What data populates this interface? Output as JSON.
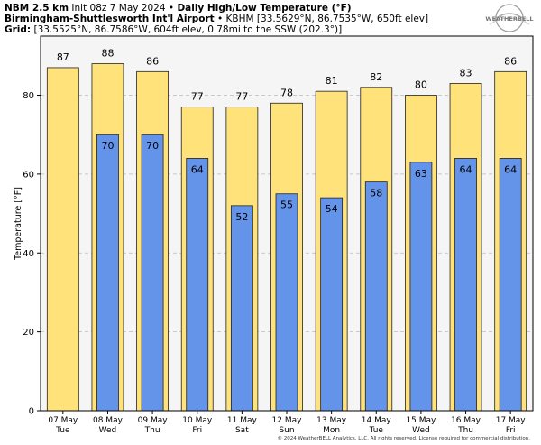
{
  "header": {
    "model": "NBM 2.5 km",
    "init": "Init 08z 7 May 2024",
    "bullet": "•",
    "title": "Daily High/Low Temperature (°F)",
    "station": "Birmingham-Shuttlesworth Int'l Airport",
    "station_info": "KBHM [33.5629°N, 86.7535°W, 650ft elev]",
    "grid_label": "Grid",
    "grid_info": "[33.5525°N, 86.7586°W, 604ft elev, 0.78mi to the SSW (202.3°)]"
  },
  "logo": {
    "text": "WEATHERBELL"
  },
  "copyright": "© 2024 WeatherBELL Analytics, LLC. All rights reserved. License required for commercial distribution.",
  "colors": {
    "high": "#ffe27a",
    "low": "#6494ea",
    "background": "#f5f5f5",
    "grid": "#bbbbbb"
  },
  "chart_data": {
    "type": "bar",
    "title": "Daily High/Low Temperature (°F)",
    "ylabel": "Temperature [°F]",
    "xlabel": "",
    "ylim": [
      0,
      95
    ],
    "yticks": [
      0,
      20,
      40,
      60,
      80
    ],
    "grid": "horizontal dashed",
    "categories": [
      {
        "date": "07 May",
        "day": "Tue"
      },
      {
        "date": "08 May",
        "day": "Wed"
      },
      {
        "date": "09 May",
        "day": "Thu"
      },
      {
        "date": "10 May",
        "day": "Fri"
      },
      {
        "date": "11 May",
        "day": "Sat"
      },
      {
        "date": "12 May",
        "day": "Sun"
      },
      {
        "date": "13 May",
        "day": "Mon"
      },
      {
        "date": "14 May",
        "day": "Tue"
      },
      {
        "date": "15 May",
        "day": "Wed"
      },
      {
        "date": "16 May",
        "day": "Thu"
      },
      {
        "date": "17 May",
        "day": "Fri"
      }
    ],
    "series": [
      {
        "name": "High",
        "values": [
          87,
          88,
          86,
          77,
          77,
          78,
          81,
          82,
          80,
          83,
          86
        ]
      },
      {
        "name": "Low",
        "values": [
          null,
          70,
          70,
          64,
          52,
          55,
          54,
          58,
          63,
          64,
          64
        ]
      }
    ]
  }
}
